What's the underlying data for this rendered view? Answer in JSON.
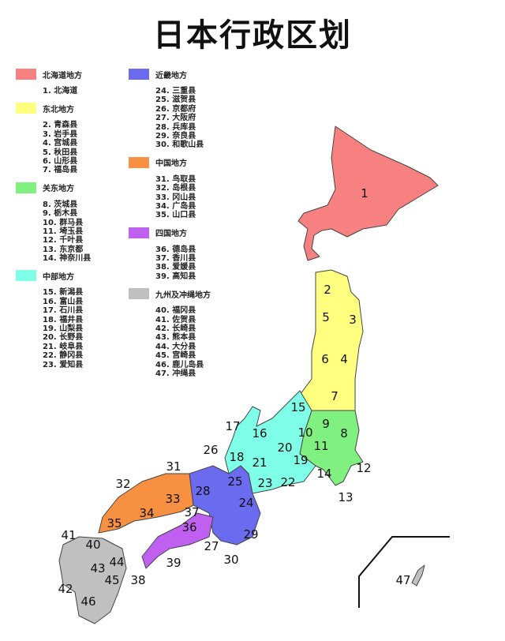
{
  "title": "日本行政区划",
  "colors": {
    "hokkaido": "#f78080",
    "tohoku": "#ffff80",
    "kanto": "#80f080",
    "chubu": "#80ffe8",
    "kinki": "#6b6bf0",
    "chugoku": "#f79040",
    "shikoku": "#c060f0",
    "kyushu": "#c0c0c0"
  },
  "legend_left": [
    {
      "region": "北海道地方",
      "color": "#f78080",
      "items": [
        "1. 北海道"
      ]
    },
    {
      "region": "东北地方",
      "color": "#ffff80",
      "items": [
        "2. 青森县",
        "3. 岩手县",
        "4. 宫城县",
        "5. 秋田县",
        "6. 山形县",
        "7. 福岛县"
      ]
    },
    {
      "region": "关东地方",
      "color": "#80f080",
      "items": [
        "8. 茨城县",
        "9. 栃木县",
        "10. 群马县",
        "11. 埼玉县",
        "12. 千叶县",
        "13. 东京都",
        "14. 神奈川县"
      ]
    },
    {
      "region": "中部地方",
      "color": "#80ffe8",
      "items": [
        "15. 新潟县",
        "16. 富山县",
        "17. 石川县",
        "18. 福井县",
        "19. 山梨县",
        "20. 长野县",
        "21. 岐阜县",
        "22. 静冈县",
        "23. 爱知县"
      ]
    }
  ],
  "legend_right": [
    {
      "region": "近畿地方",
      "color": "#6b6bf0",
      "items": [
        "24. 三重县",
        "25. 滋贺县",
        "26. 京都府",
        "27. 大阪府",
        "28. 兵库县",
        "29. 奈良县",
        "30. 和歌山县"
      ]
    },
    {
      "region": "中国地方",
      "color": "#f79040",
      "items": [
        "31. 鸟取县",
        "32. 岛根县",
        "33. 冈山县",
        "34. 广岛县",
        "35. 山口县"
      ]
    },
    {
      "region": "四国地方",
      "color": "#c060f0",
      "items": [
        "36. 德岛县",
        "37. 香川县",
        "38. 爱媛县",
        "39. 高知县"
      ]
    },
    {
      "region": "九州及冲绳地方",
      "color": "#c0c0c0",
      "items": [
        "40. 福冈县",
        "41. 佐贺县",
        "42. 长崎县",
        "43. 熊本县",
        "44. 大分县",
        "45. 宫崎县",
        "46. 鹿儿岛县",
        "47. 冲绳县"
      ]
    }
  ],
  "map_labels": [
    "1",
    "2",
    "3",
    "4",
    "5",
    "6",
    "7",
    "8",
    "9",
    "10",
    "11",
    "12",
    "13",
    "14",
    "15",
    "16",
    "17",
    "18",
    "19",
    "20",
    "21",
    "22",
    "23",
    "24",
    "25",
    "26",
    "27",
    "28",
    "29",
    "30",
    "31",
    "32",
    "33",
    "34",
    "35",
    "36",
    "37",
    "38",
    "39",
    "40",
    "41",
    "42",
    "43",
    "44",
    "45",
    "46",
    "47"
  ]
}
